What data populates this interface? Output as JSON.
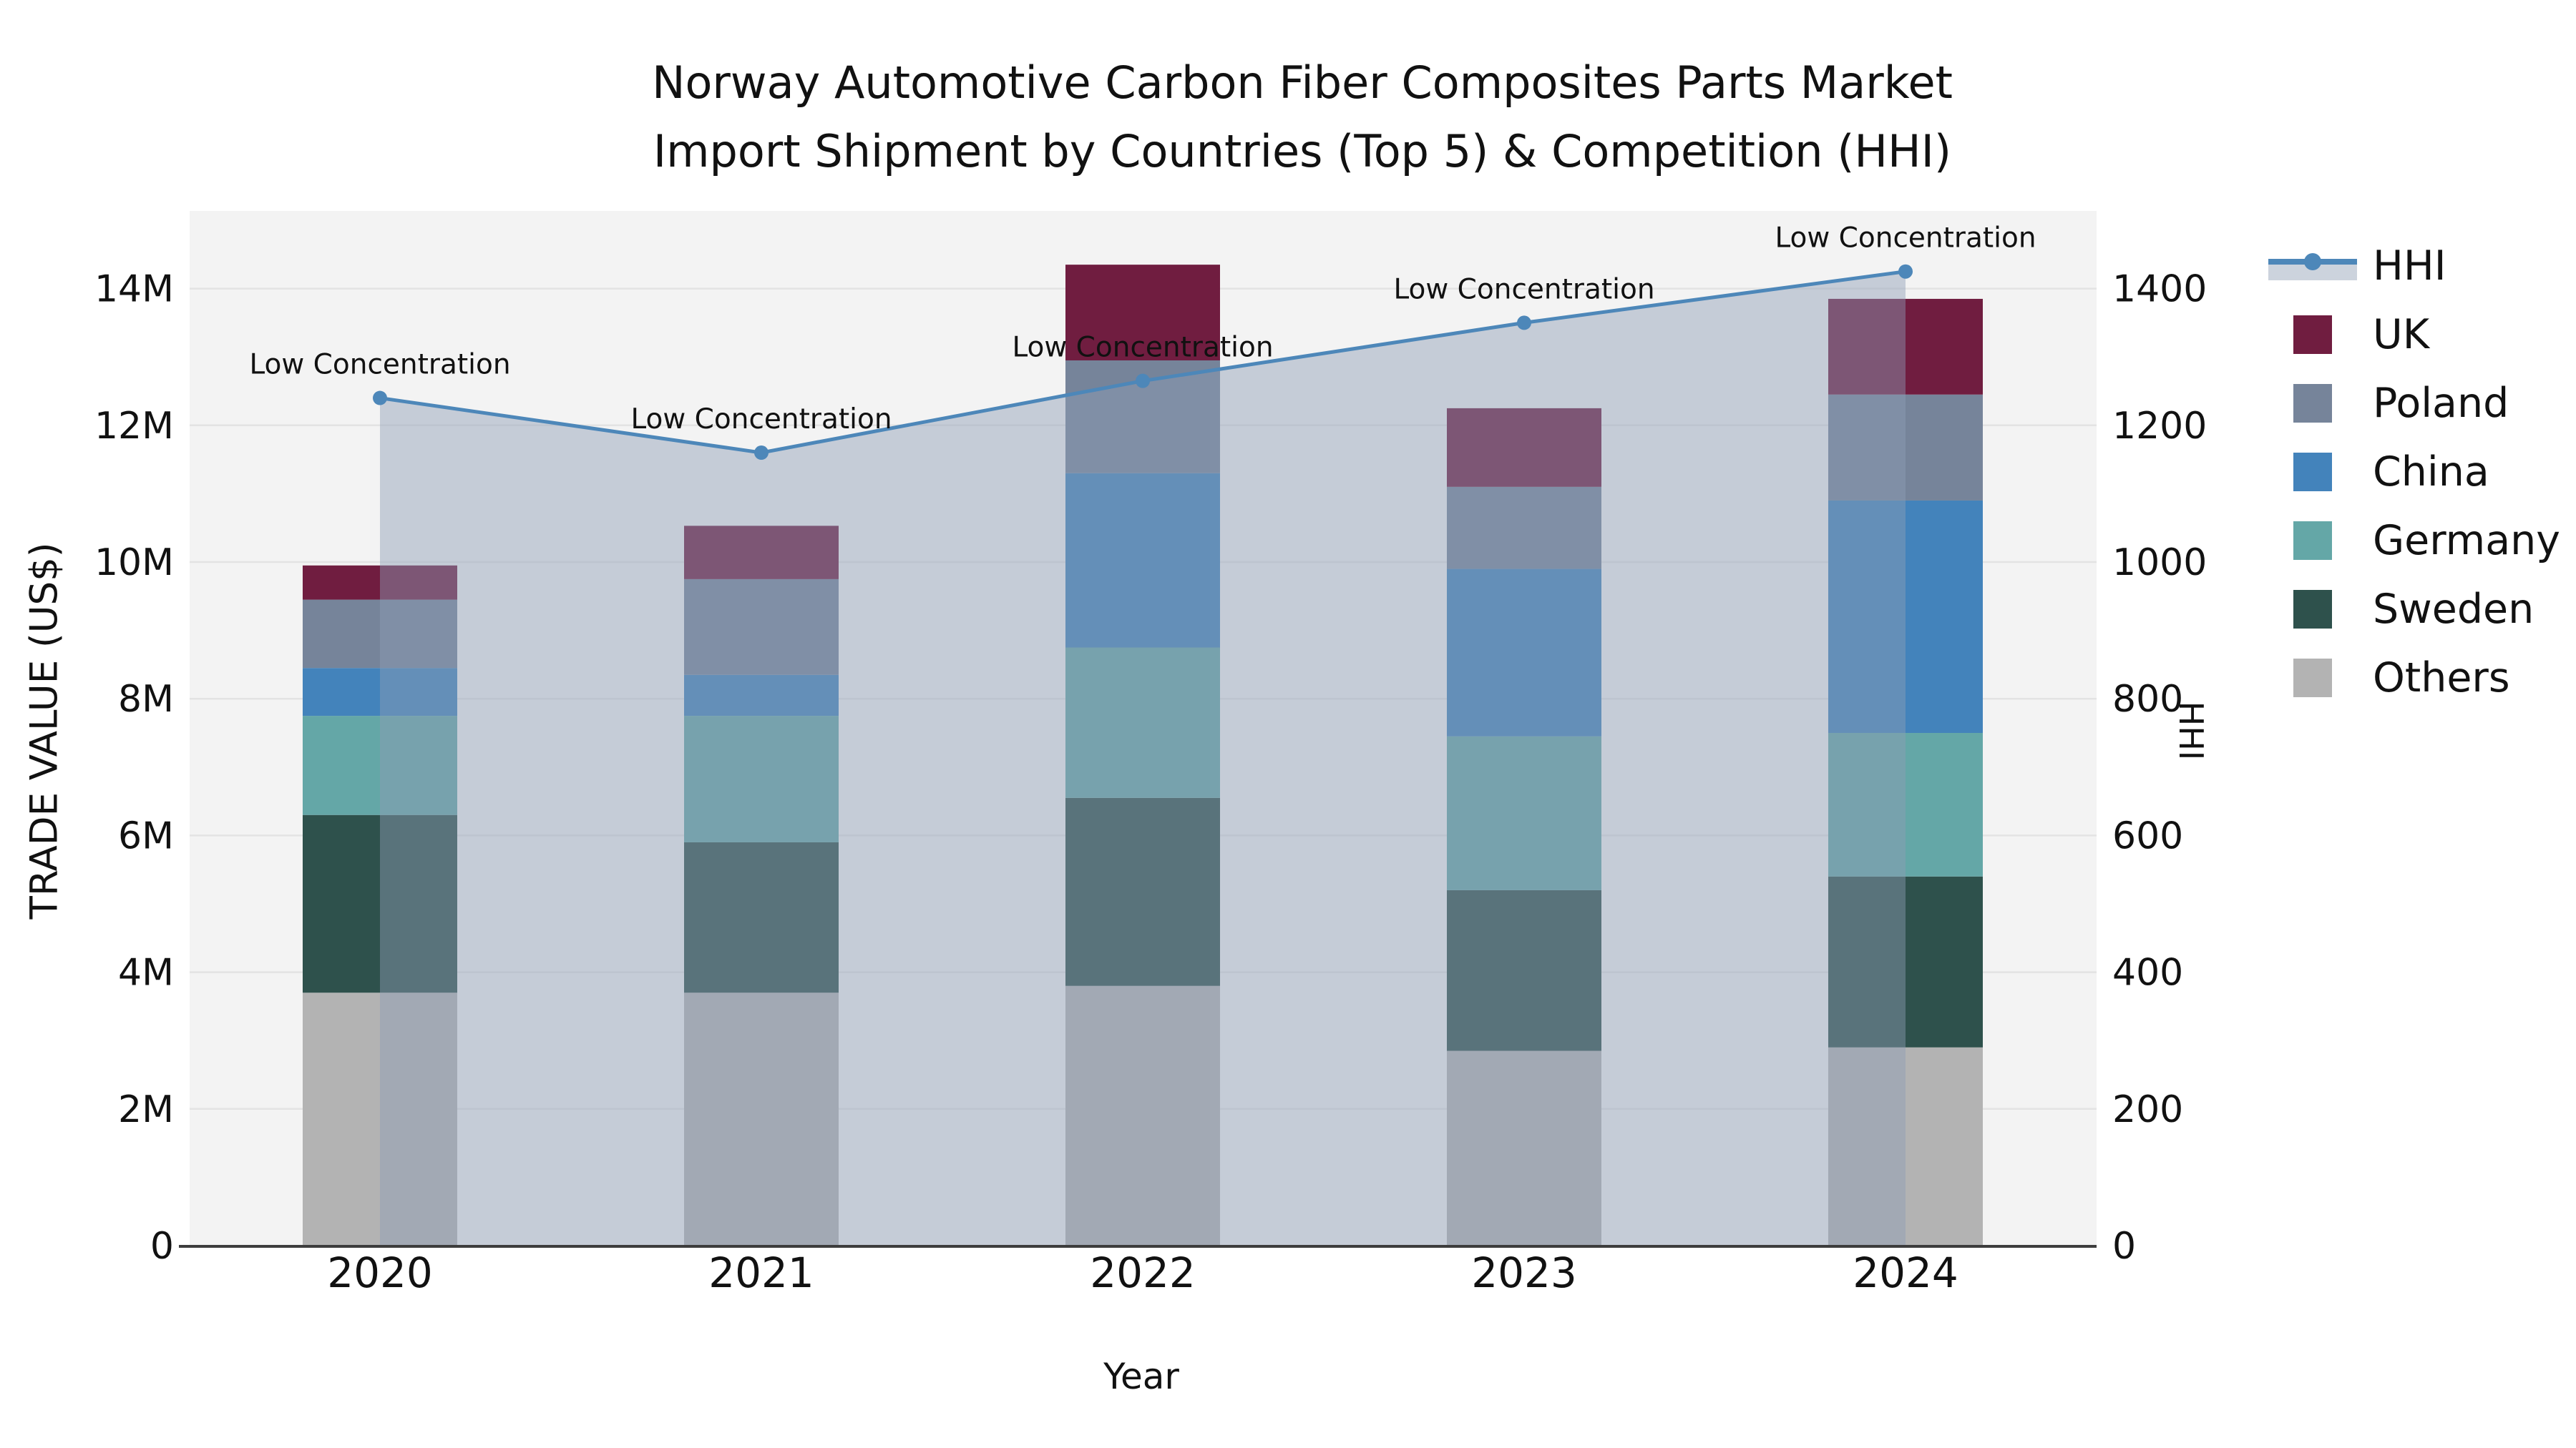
{
  "chart_data": {
    "type": "stacked-bar+line",
    "title": {
      "line1": "Norway Automotive Carbon Fiber Composites Parts Market",
      "line2": "Import Shipment by Countries (Top 5) & Competition (HHI)"
    },
    "xlabel": "Year",
    "ylabel_left": "TRADE VALUE (US$)",
    "ylabel_right": "HHI",
    "categories": [
      "2020",
      "2021",
      "2022",
      "2023",
      "2024"
    ],
    "value_unit": "millions USD",
    "series": [
      {
        "name": "Others",
        "color": "#b3b3b3",
        "values": [
          3.7,
          3.7,
          3.8,
          2.85,
          2.9
        ]
      },
      {
        "name": "Sweden",
        "color": "#2e514c",
        "values": [
          2.6,
          2.2,
          2.75,
          2.35,
          2.5
        ]
      },
      {
        "name": "Germany",
        "color": "#64a7a7",
        "values": [
          1.45,
          1.85,
          2.2,
          2.25,
          2.1
        ]
      },
      {
        "name": "China",
        "color": "#4383bb",
        "values": [
          0.7,
          0.6,
          2.55,
          2.45,
          3.4
        ]
      },
      {
        "name": "Poland",
        "color": "#76849a",
        "values": [
          1.0,
          1.4,
          1.65,
          1.2,
          1.55
        ]
      },
      {
        "name": "UK",
        "color": "#701d40",
        "values": [
          0.5,
          0.78,
          1.4,
          1.15,
          1.4
        ]
      }
    ],
    "line_series": {
      "name": "HHI",
      "color": "#4d87b9",
      "area_fill": "rgba(141,158,181,0.45)",
      "values": [
        1240,
        1160,
        1265,
        1350,
        1425
      ],
      "annotations": [
        "Low Concentration",
        "Low Concentration",
        "Low Concentration",
        "Low Concentration",
        "Low Concentration"
      ]
    },
    "y_left_ticks": [
      "0",
      "2M",
      "4M",
      "6M",
      "8M",
      "10M",
      "12M",
      "14M"
    ],
    "y_right_ticks": [
      "0",
      "200",
      "400",
      "600",
      "800",
      "1000",
      "1200",
      "1400"
    ],
    "axis_ranges": {
      "left_m": [
        0,
        15.1
      ],
      "right_hhi": [
        0,
        1510
      ]
    },
    "legend_order": [
      "HHI",
      "UK",
      "Poland",
      "China",
      "Germany",
      "Sweden",
      "Others"
    ],
    "grid": true,
    "styles": {
      "plot_bg": "#f3f3f3",
      "grid_color": "#e3e3e3",
      "axis_line_color": "#3d3d3d",
      "text_color": "#111111",
      "legend_area_swatch": "#ccd3dd"
    }
  }
}
